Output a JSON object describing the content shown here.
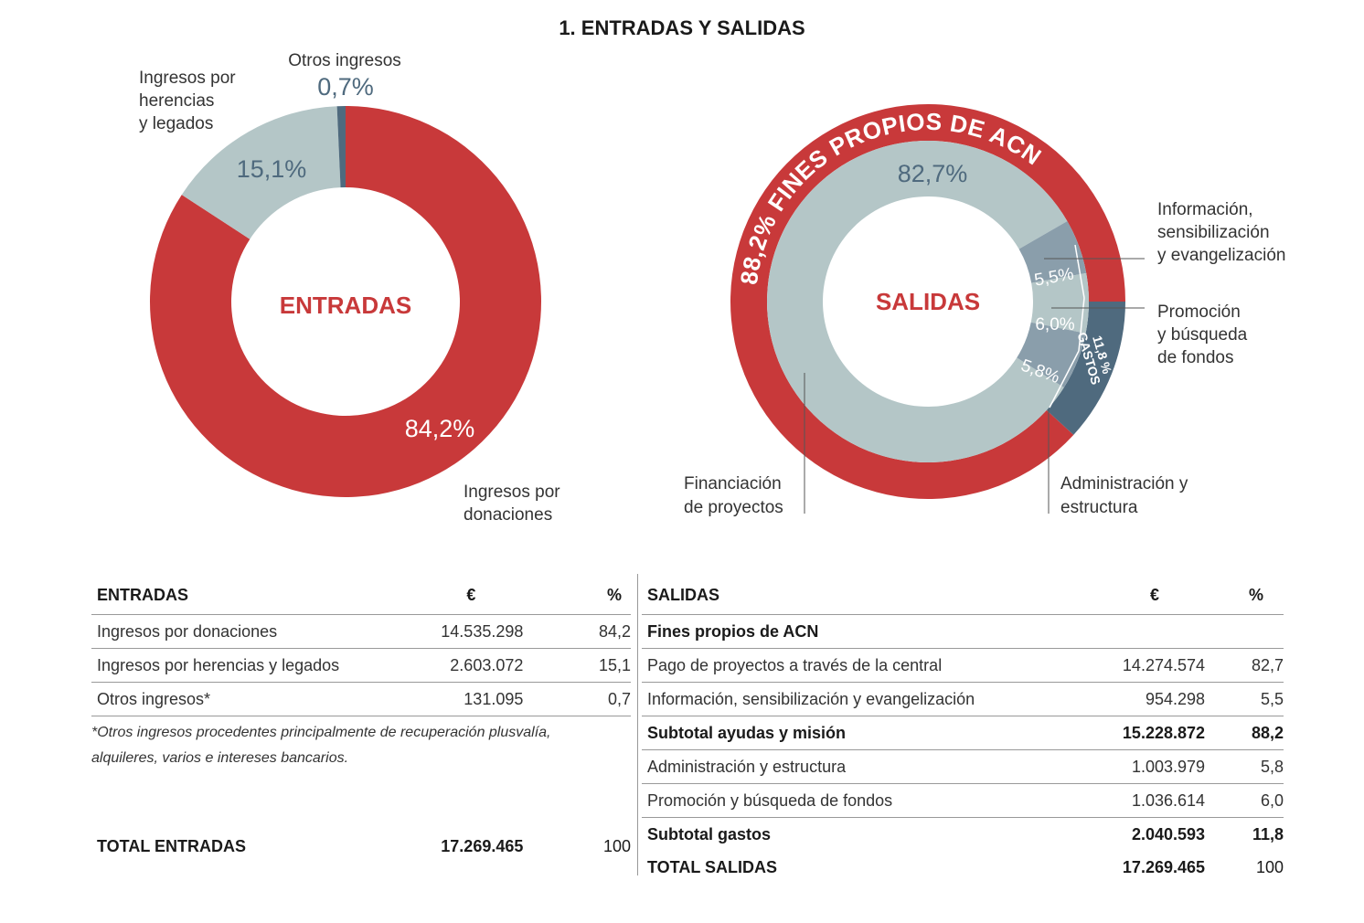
{
  "title": "1. ENTRADAS Y SALIDAS",
  "chart_data": [
    {
      "type": "pie",
      "center_label": "ENTRADAS",
      "categories": [
        "Ingresos por donaciones",
        "Ingresos por herencias y legados",
        "Otros ingresos"
      ],
      "label_lines": [
        [
          "Ingresos por",
          "donaciones"
        ],
        [
          "Ingresos por",
          "herencias",
          "y legados"
        ],
        [
          "Otros ingresos"
        ]
      ],
      "values": [
        84.2,
        15.1,
        0.7
      ],
      "value_labels": [
        "84,2%",
        "15,1%",
        "0,7%"
      ],
      "colors": [
        "#c8393a",
        "#b4c6c7",
        "#4f6a7e"
      ]
    },
    {
      "type": "pie",
      "center_label": "SALIDAS",
      "inner": {
        "categories": [
          "Financiación de proyectos",
          "Información, sensibilización y evangelización",
          "Promoción y búsqueda de fondos",
          "Administración y estructura"
        ],
        "label_lines": [
          [
            "Financiación",
            "de proyectos"
          ],
          [
            "Información,",
            "sensibilización",
            "y evangelización"
          ],
          [
            "Promoción",
            "y búsqueda",
            "de fondos"
          ],
          [
            "Administración y",
            "estructura"
          ]
        ],
        "values": [
          82.7,
          5.5,
          6.0,
          5.8
        ],
        "value_labels": [
          "82,7%",
          "5,5%",
          "6,0%",
          "5,8%"
        ],
        "colors": [
          "#b4c6c7",
          "#8a9eab",
          "#b4c6c7",
          "#8a9eab"
        ]
      },
      "outer": {
        "categories": [
          "FINES PROPIOS DE ACN",
          "GASTOS"
        ],
        "values": [
          88.2,
          11.8
        ],
        "value_labels": [
          "88,2%",
          "11,8 %"
        ],
        "colors": [
          "#c8393a",
          "#4f6a7e"
        ]
      }
    }
  ],
  "entradas_table": {
    "headers": [
      "ENTRADAS",
      "€",
      "%"
    ],
    "rows": [
      {
        "label": "Ingresos por donaciones",
        "euros": "14.535.298",
        "pct": "84,2"
      },
      {
        "label": "Ingresos por herencias y legados",
        "euros": "2.603.072",
        "pct": "15,1"
      },
      {
        "label": "Otros ingresos*",
        "euros": "131.095",
        "pct": "0,7"
      }
    ],
    "note": "*Otros ingresos procedentes principalmente de recuperación plusvalía, alquileres, varios e intereses bancarios.",
    "total": {
      "label": "TOTAL ENTRADAS",
      "euros": "17.269.465",
      "pct": "100"
    }
  },
  "salidas_table": {
    "headers": [
      "SALIDAS",
      "€",
      "%"
    ],
    "rows": [
      {
        "label": "Fines propios de ACN",
        "euros": "",
        "pct": "",
        "bold": true
      },
      {
        "label": "Pago de proyectos a través de la central",
        "euros": "14.274.574",
        "pct": "82,7"
      },
      {
        "label": "Información, sensibilización y evangelización",
        "euros": "954.298",
        "pct": "5,5"
      },
      {
        "label": "Subtotal ayudas y misión",
        "euros": "15.228.872",
        "pct": "88,2",
        "bold": true
      },
      {
        "label": "Administración y estructura",
        "euros": "1.003.979",
        "pct": "5,8"
      },
      {
        "label": "Promoción y búsqueda de fondos",
        "euros": "1.036.614",
        "pct": "6,0"
      },
      {
        "label": "Subtotal gastos",
        "euros": "2.040.593",
        "pct": "11,8",
        "bold": true
      }
    ],
    "total": {
      "label": "TOTAL SALIDAS",
      "euros": "17.269.465",
      "pct": "100"
    }
  }
}
